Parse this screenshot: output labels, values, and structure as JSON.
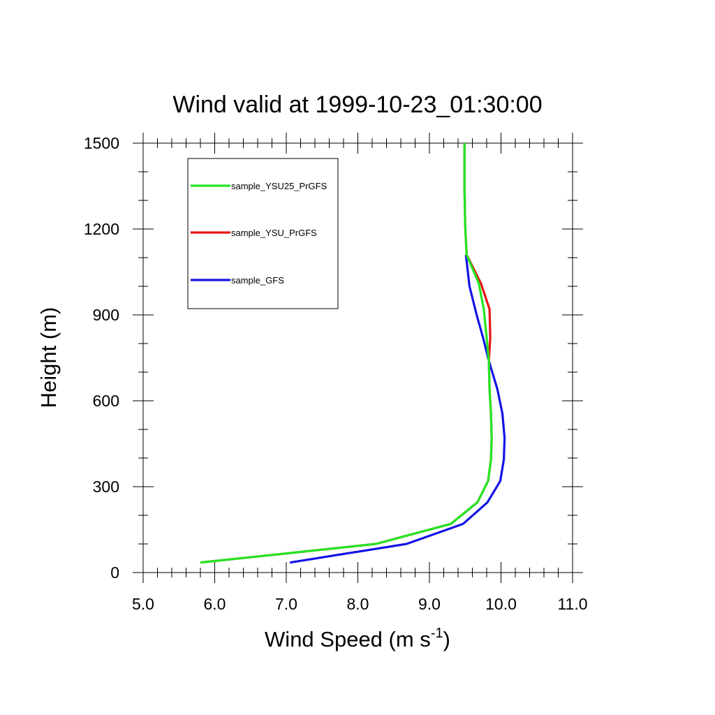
{
  "chart_data": {
    "type": "line",
    "title": "Wind valid at 1999-10-23_01:30:00",
    "xlabel": "Wind Speed (m s",
    "xlabel_superscript": "-1",
    "xlabel_suffix": ")",
    "ylabel": "Height (m)",
    "xlim": [
      5.0,
      11.0
    ],
    "ylim": [
      0,
      1500
    ],
    "x_ticks": [
      5.0,
      6.0,
      7.0,
      8.0,
      9.0,
      10.0,
      11.0
    ],
    "x_tick_labels": [
      "5.0",
      "6.0",
      "7.0",
      "8.0",
      "9.0",
      "10.0",
      "11.0"
    ],
    "x_minor_step": 0.2,
    "y_ticks": [
      0,
      300,
      600,
      900,
      1200,
      1500
    ],
    "y_tick_labels": [
      "0",
      "300",
      "600",
      "900",
      "1200",
      "1500"
    ],
    "y_minor_step": 100,
    "grid": false,
    "legend_position": "top-left",
    "series": [
      {
        "name": "sample_YSU25_PrGFS",
        "color": "#22e622",
        "x": [
          5.8,
          8.25,
          9.3,
          9.67,
          9.82,
          9.86,
          9.87,
          9.86,
          9.84,
          9.83,
          9.8,
          9.76,
          9.69,
          9.52,
          9.5,
          9.49,
          9.49
        ],
        "y": [
          35,
          100,
          170,
          245,
          320,
          395,
          470,
          555,
          640,
          740,
          820,
          920,
          1010,
          1110,
          1210,
          1350,
          1500
        ]
      },
      {
        "name": "sample_YSU_PrGFS",
        "color": "#e61414",
        "x": [
          5.8,
          8.25,
          9.3,
          9.67,
          9.82,
          9.86,
          9.87,
          9.86,
          9.84,
          9.83,
          9.85,
          9.84,
          9.72,
          9.52,
          9.5,
          9.49,
          9.49
        ],
        "y": [
          35,
          100,
          170,
          245,
          320,
          395,
          470,
          555,
          640,
          740,
          820,
          920,
          1010,
          1110,
          1210,
          1350,
          1500
        ]
      },
      {
        "name": "sample_GFS",
        "color": "#1414e6",
        "x": [
          7.05,
          8.68,
          9.47,
          9.81,
          9.99,
          10.04,
          10.05,
          10.02,
          9.95,
          9.83,
          9.75,
          9.66,
          9.56,
          9.51
        ],
        "y": [
          35,
          100,
          170,
          245,
          320,
          395,
          470,
          555,
          640,
          740,
          820,
          900,
          1000,
          1110
        ]
      }
    ]
  }
}
